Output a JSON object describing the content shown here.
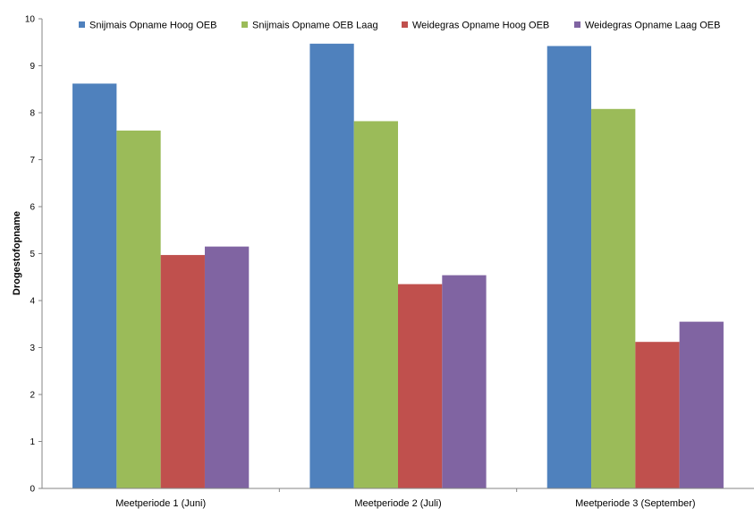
{
  "chart_data": {
    "type": "bar",
    "ylabel": "Drogestofopname",
    "xlabel": "",
    "ylim": [
      0,
      10
    ],
    "yticks": [
      "0",
      "1",
      "2",
      "3",
      "4",
      "5",
      "6",
      "7",
      "8",
      "9",
      "10"
    ],
    "categories": [
      "Meetperiode 1 (Juni)",
      "Meetperiode 2 (Juli)",
      "Meetperiode 3 (September)"
    ],
    "series": [
      {
        "name": "Snijmais Opname Hoog OEB",
        "color": "#4F81BD",
        "values": [
          8.62,
          9.47,
          9.42
        ]
      },
      {
        "name": "Snijmais Opname OEB Laag",
        "color": "#9BBB59",
        "values": [
          7.62,
          7.82,
          8.08
        ]
      },
      {
        "name": "Weidegras Opname Hoog OEB",
        "color": "#C0504D",
        "values": [
          4.97,
          4.35,
          3.12
        ]
      },
      {
        "name": "Weidegras Opname Laag OEB",
        "color": "#8064A2",
        "values": [
          5.15,
          4.54,
          3.55
        ]
      }
    ],
    "grid": false,
    "legend": "top"
  }
}
